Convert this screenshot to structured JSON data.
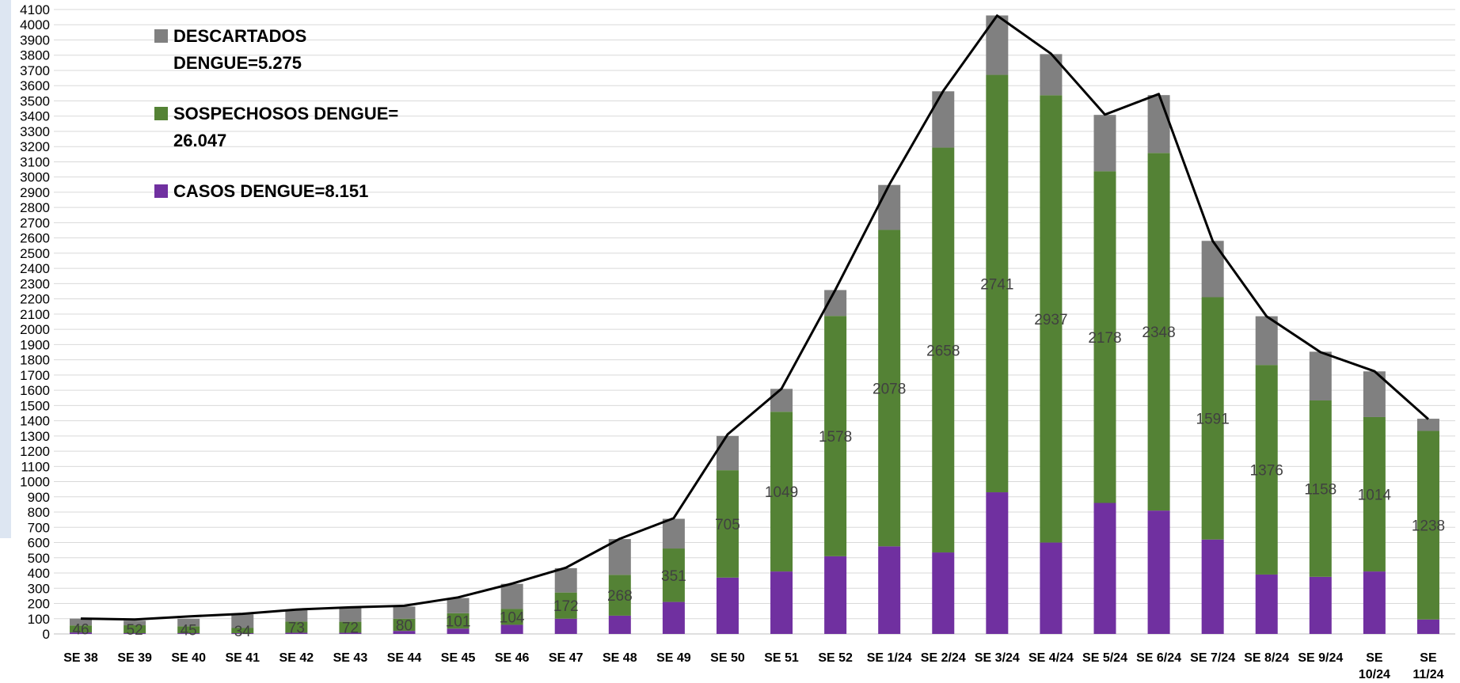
{
  "chart_data": {
    "type": "bar",
    "stacked": true,
    "categories": [
      "SE 38",
      "SE 39",
      "SE 40",
      "SE 41",
      "SE 42",
      "SE 43",
      "SE 44",
      "SE 45",
      "SE 46",
      "SE 47",
      "SE 48",
      "SE 49",
      "SE 50",
      "SE 51",
      "SE 52",
      "SE 1/24",
      "SE 2/24",
      "SE 3/24",
      "SE 4/24",
      "SE 5/24",
      "SE 6/24",
      "SE 7/24",
      "SE 8/24",
      "SE 9/24",
      "SE 10/24",
      "SE 11/24"
    ],
    "series": [
      {
        "name": "CASOS DENGUE=8.151",
        "color": "#7030a0",
        "values": [
          10,
          5,
          5,
          5,
          8,
          8,
          20,
          35,
          60,
          100,
          120,
          210,
          370,
          410,
          510,
          575,
          535,
          930,
          600,
          860,
          810,
          620,
          390,
          375,
          410,
          95
        ]
      },
      {
        "name": "SOSPECHOSOS DENGUE= 26.047",
        "color": "#548235",
        "values": [
          46,
          52,
          45,
          34,
          73,
          72,
          80,
          101,
          104,
          172,
          268,
          351,
          705,
          1049,
          1578,
          2078,
          2658,
          2741,
          2937,
          2178,
          2348,
          1591,
          1376,
          1158,
          1014,
          1238
        ]
      },
      {
        "name": "DESCARTADOS DENGUE=5.275",
        "color": "#808080",
        "values": [
          45,
          30,
          50,
          90,
          80,
          95,
          80,
          100,
          165,
          160,
          235,
          195,
          225,
          150,
          170,
          295,
          370,
          390,
          270,
          370,
          380,
          370,
          320,
          320,
          300,
          80
        ]
      }
    ],
    "data_labels_series": 1,
    "line": {
      "color": "#000000",
      "values": [
        101,
        95,
        115,
        132,
        160,
        175,
        185,
        240,
        330,
        435,
        625,
        760,
        1310,
        1610,
        2260,
        2950,
        3565,
        4060,
        3810,
        3410,
        3545,
        2580,
        2085,
        1850,
        1725,
        1410
      ]
    },
    "ylim": [
      0,
      4100
    ],
    "ytick_step": 100,
    "grid": true,
    "legend": {
      "placement": "top-left",
      "entries": [
        {
          "lines": [
            "DESCARTADOS",
            "DENGUE=5.275"
          ],
          "color": "#808080"
        },
        {
          "lines": [
            "SOSPECHOSOS DENGUE=",
            "26.047"
          ],
          "color": "#548235"
        },
        {
          "lines": [
            "CASOS DENGUE=8.151"
          ],
          "color": "#7030a0"
        }
      ]
    },
    "title": "",
    "xlabel": "",
    "ylabel": ""
  }
}
